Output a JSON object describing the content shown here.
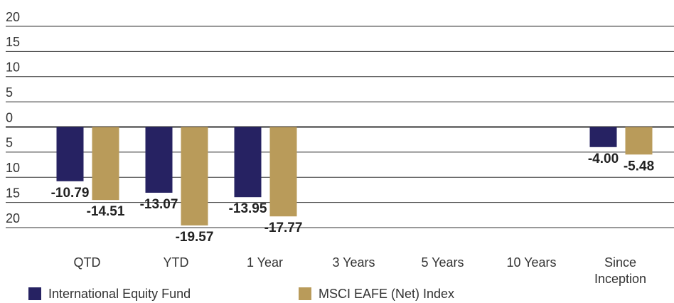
{
  "chart_data": {
    "type": "bar",
    "categories": [
      "QTD",
      "YTD",
      "1 Year",
      "3 Years",
      "5 Years",
      "10 Years",
      "Since Inception"
    ],
    "series": [
      {
        "name": "International Equity Fund",
        "color": "#262262",
        "values": [
          -10.79,
          -13.07,
          -13.95,
          null,
          null,
          null,
          -4.0
        ],
        "value_labels": [
          "-10.79",
          "-13.07",
          "-13.95",
          null,
          null,
          null,
          "-4.00"
        ]
      },
      {
        "name": "MSCI EAFE (Net) Index",
        "color": "#b99b5a",
        "values": [
          -14.51,
          -19.57,
          -17.77,
          null,
          null,
          null,
          -5.48
        ],
        "value_labels": [
          "-14.51",
          "-19.57",
          "-17.77",
          null,
          null,
          null,
          "-5.48"
        ]
      }
    ],
    "ylim": [
      -20,
      20
    ],
    "yticks": [
      20,
      15,
      10,
      5,
      0,
      {
        "value": -5,
        "label": "5"
      },
      {
        "value": -10,
        "label": "10"
      },
      {
        "value": -15,
        "label": "15"
      },
      {
        "value": -20,
        "label": "20"
      }
    ],
    "grid": true,
    "legend": "bottom"
  }
}
